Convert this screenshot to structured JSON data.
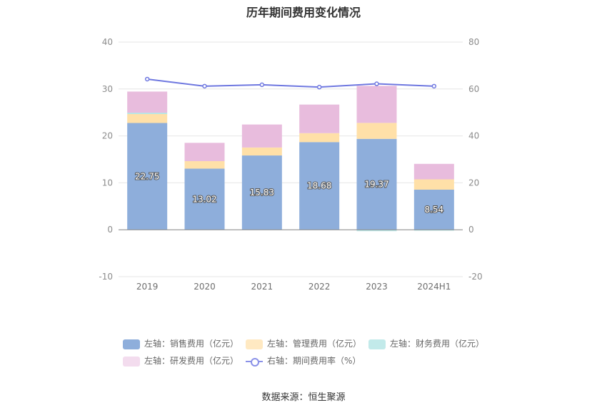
{
  "title": "历年期间费用变化情况",
  "source": "数据来源：恒生聚源",
  "chart_data": {
    "type": "bar",
    "categories": [
      "2019",
      "2020",
      "2021",
      "2022",
      "2023",
      "2024H1"
    ],
    "left_axis": {
      "ylim": [
        -10,
        40
      ],
      "ticks": [
        "-10",
        "0",
        "10",
        "20",
        "30",
        "40"
      ]
    },
    "right_axis": {
      "ylim": [
        -20,
        80
      ],
      "ticks": [
        "-20",
        "0",
        "20",
        "40",
        "60",
        "80"
      ]
    },
    "grid": true,
    "stacked": true,
    "series": [
      {
        "name": "左轴：销售费用（亿元）",
        "axis": "left",
        "type": "bar",
        "color": "#8eaedb",
        "values": [
          22.75,
          13.02,
          15.83,
          18.68,
          19.37,
          8.54
        ],
        "labels": [
          "22.75",
          "13.02",
          "15.83",
          "18.68",
          "19.37",
          "8.54"
        ]
      },
      {
        "name": "左轴：管理费用（亿元）",
        "axis": "left",
        "type": "bar",
        "color": "#ffe0a8",
        "values": [
          1.9,
          1.6,
          1.7,
          1.9,
          3.4,
          2.2
        ]
      },
      {
        "name": "左轴：财务费用（亿元）",
        "axis": "left",
        "type": "bar",
        "color": "#b8e6e6",
        "values": [
          0.3,
          0.0,
          0.0,
          0.0,
          -0.3,
          -0.2
        ]
      },
      {
        "name": "左轴：研发费用（亿元）",
        "axis": "left",
        "type": "bar",
        "color": "#e8bcdd",
        "values": [
          4.5,
          3.9,
          4.9,
          6.1,
          7.9,
          3.3
        ]
      },
      {
        "name": "右轴：期间费用率（%）",
        "axis": "right",
        "type": "line",
        "color": "#6f78e0",
        "values": [
          64.2,
          61.2,
          61.8,
          60.8,
          62.2,
          61.2
        ]
      }
    ],
    "legend_position": "bottom"
  }
}
